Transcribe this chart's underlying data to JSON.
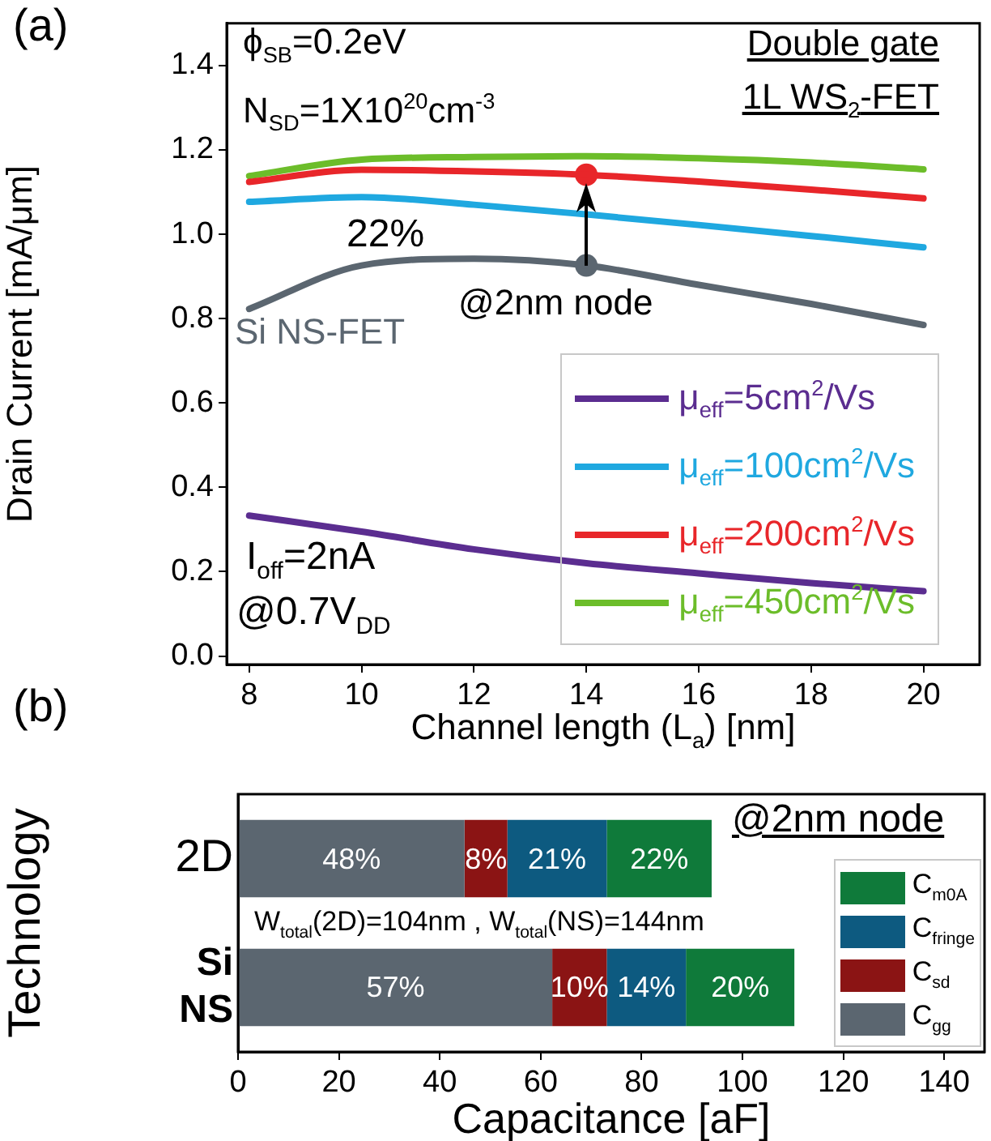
{
  "chart_data": [
    {
      "type": "line",
      "xlabel": "Channel length (L$_{a}$) [nm]",
      "ylabel": "Drain Current [mA/μm]",
      "x": [
        8,
        10,
        12,
        14,
        16,
        18,
        20
      ],
      "xlim": [
        7.6,
        21
      ],
      "xticks": [
        8,
        10,
        12,
        14,
        16,
        18,
        20
      ],
      "ylim": [
        -0.02,
        1.5
      ],
      "yticks": [
        {
          "value": 0,
          "label": "0.0"
        },
        {
          "value": 0.2,
          "label": "0.2"
        },
        {
          "value": 0.4,
          "label": "0.4"
        },
        {
          "value": 0.6,
          "label": "0.6"
        },
        {
          "value": 0.8,
          "label": "0.8"
        },
        {
          "value": 1,
          "label": "1.0"
        },
        {
          "value": 1.2,
          "label": "1.2"
        },
        {
          "value": 1.4,
          "label": "1.4"
        }
      ],
      "series": [
        {
          "name": "μ$_{eff}$=5cm$^{2}$/Vs",
          "color": "#5b2d90",
          "values": [
            0.333,
            0.295,
            0.253,
            0.22,
            0.196,
            0.173,
            0.154
          ]
        },
        {
          "name": "μ$_{eff}$=100cm$^{2}$/Vs",
          "color": "#1fa8e0",
          "values": [
            1.077,
            1.088,
            1.07,
            1.047,
            1.022,
            0.996,
            0.969
          ]
        },
        {
          "name": "μ$_{eff}$=200cm$^{2}$/Vs",
          "color": "#e8262a",
          "values": [
            1.124,
            1.153,
            1.149,
            1.141,
            1.125,
            1.106,
            1.085
          ]
        },
        {
          "name": "μ$_{eff}$=450cm$^{2}$/Vs",
          "color": "#6cbd2a",
          "values": [
            1.138,
            1.177,
            1.183,
            1.185,
            1.18,
            1.17,
            1.154
          ]
        },
        {
          "color": "#5b6670",
          "values": [
            0.823,
            0.926,
            0.942,
            0.926,
            0.88,
            0.835,
            0.785
          ]
        },
        {
          "type": "scatter",
          "x": [
            14,
            14
          ],
          "colors": [
            "#5b6670",
            "#e8262a"
          ],
          "values": [
            0.926,
            1.141
          ]
        }
      ],
      "annotations": [
        "(a)",
        "ϕ$_{SB}$=0.2eV",
        "N$_{SD}$=1X10$^{20}$cm$^{-3}$",
        "Double gate",
        "1L WS$_{2}$-FET",
        "22%",
        "@2nm node",
        "Si NS-FET",
        "I$_{off}$=2nA",
        "@0.7V$_{DD}$"
      ],
      "legend": "bottom right",
      "grid": false
    },
    {
      "type": "bar",
      "orientation": "horizontal",
      "stacked": true,
      "xlabel": "Capacitance  [aF]",
      "ylabel": "Technology",
      "categories": [
        "2D",
        "Si NS"
      ],
      "xlim": [
        0,
        148
      ],
      "xticks": [
        0,
        20,
        40,
        60,
        80,
        100,
        120,
        140
      ],
      "series": [
        {
          "name": "C$_{gg}$",
          "color": "#5b6670",
          "values": [
            44.9,
            62.3
          ]
        },
        {
          "name": "C$_{sd}$",
          "color": "#8b1414",
          "values": [
            8.5,
            10.8
          ]
        },
        {
          "name": "C$_{fringe}$",
          "color": "#0d5a80",
          "values": [
            19.7,
            15.7
          ]
        },
        {
          "name": "C$_{m0A}$",
          "color": "#0f7a3a",
          "values": [
            20.8,
            21.5
          ]
        }
      ],
      "annotations": [
        "(b)",
        "@2nm node",
        "W$_{total}$(2D)=104nm , W$_{total}$(NS)=144nm",
        "48%",
        "8%",
        "21%",
        "22%",
        "57%",
        "10%",
        "14%",
        "20%"
      ],
      "legend": "right",
      "grid": false
    }
  ]
}
